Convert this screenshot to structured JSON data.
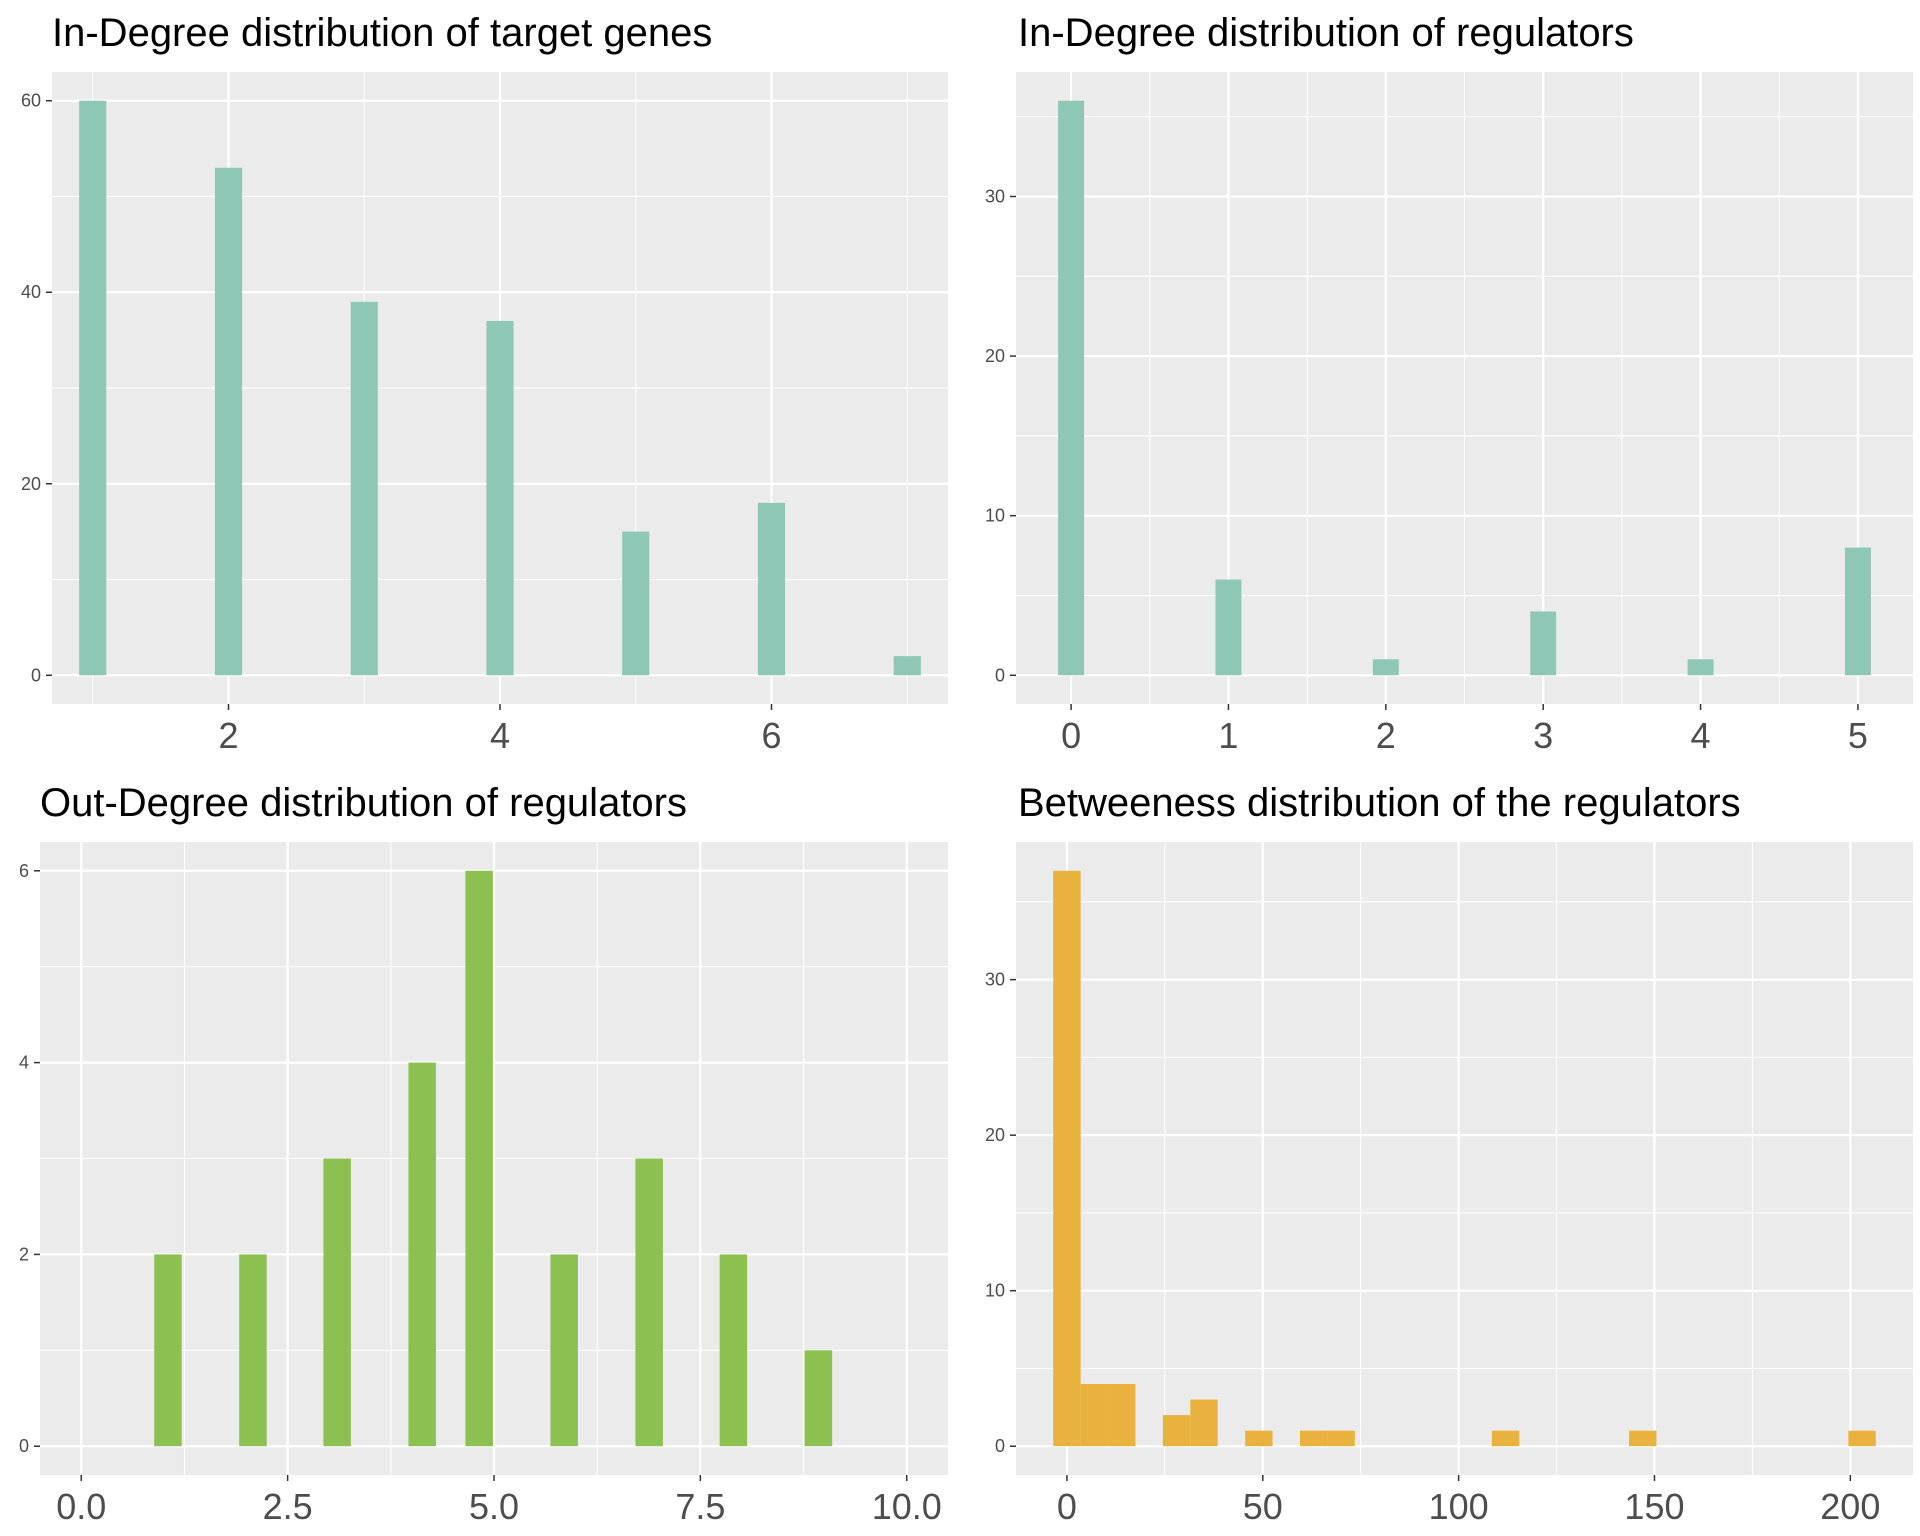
{
  "chart_data": [
    {
      "type": "bar",
      "title": "In-Degree distribution of target genes",
      "xlabel": "",
      "ylabel": "",
      "color": "#8FC7B7",
      "xlim": [
        0.7,
        7.3
      ],
      "ylim": [
        -3,
        63
      ],
      "x_ticks": [
        2,
        4,
        6
      ],
      "x_tick_labels": [
        "2",
        "4",
        "6"
      ],
      "y_ticks": [
        0,
        20,
        40,
        60
      ],
      "y_tick_labels": [
        "0",
        "20",
        "40",
        "60"
      ],
      "bin_width": 0.2,
      "x": [
        1,
        2,
        3,
        4,
        5,
        6,
        7
      ],
      "values": [
        60,
        53,
        39,
        37,
        15,
        18,
        2
      ]
    },
    {
      "type": "bar",
      "title": "In-Degree distribution of regulators",
      "xlabel": "",
      "ylabel": "",
      "color": "#8FC7B7",
      "xlim": [
        -0.35,
        5.35
      ],
      "ylim": [
        -1.8,
        37.8
      ],
      "x_ticks": [
        0,
        1,
        2,
        3,
        4,
        5
      ],
      "x_tick_labels": [
        "0",
        "1",
        "2",
        "3",
        "4",
        "5"
      ],
      "y_ticks": [
        0,
        10,
        20,
        30
      ],
      "y_tick_labels": [
        "0",
        "10",
        "20",
        "30"
      ],
      "bin_width": 0.165,
      "x": [
        0,
        1,
        2,
        3,
        4,
        5
      ],
      "values": [
        36,
        6,
        1,
        4,
        1,
        8
      ]
    },
    {
      "type": "bar",
      "title": "Out-Degree distribution of regulators",
      "xlabel": "",
      "ylabel": "",
      "color": "#8CC152",
      "xlim": [
        -0.5,
        10.5
      ],
      "ylim": [
        -0.3,
        6.3
      ],
      "x_ticks": [
        0,
        2.5,
        5,
        7.5,
        10
      ],
      "x_tick_labels": [
        "0.0",
        "2.5",
        "5.0",
        "7.5",
        "10.0"
      ],
      "y_ticks": [
        0,
        2,
        4,
        6
      ],
      "y_tick_labels": [
        "0",
        "2",
        "4",
        "6"
      ],
      "bin_width": 0.333,
      "x": [
        1.05,
        2.08,
        3.1,
        4.13,
        4.82,
        5.85,
        6.88,
        7.9,
        8.93
      ],
      "values": [
        2,
        2,
        3,
        4,
        6,
        2,
        3,
        2,
        1
      ]
    },
    {
      "type": "bar",
      "title": "Betweeness distribution of the regulators",
      "xlabel": "",
      "ylabel": "",
      "color": "#E9B23E",
      "xlim": [
        -13,
        216
      ],
      "ylim": [
        -1.85,
        38.85
      ],
      "x_ticks": [
        0,
        50,
        100,
        150,
        200
      ],
      "x_tick_labels": [
        "0",
        "50",
        "100",
        "150",
        "200"
      ],
      "y_ticks": [
        0,
        10,
        20,
        30
      ],
      "y_tick_labels": [
        "0",
        "10",
        "20",
        "30"
      ],
      "bin_width": 7,
      "x": [
        0,
        7,
        14,
        28,
        35,
        49,
        63,
        70,
        112,
        147,
        203
      ],
      "values": [
        37,
        4,
        4,
        2,
        3,
        1,
        1,
        1,
        1,
        1,
        1
      ]
    }
  ]
}
